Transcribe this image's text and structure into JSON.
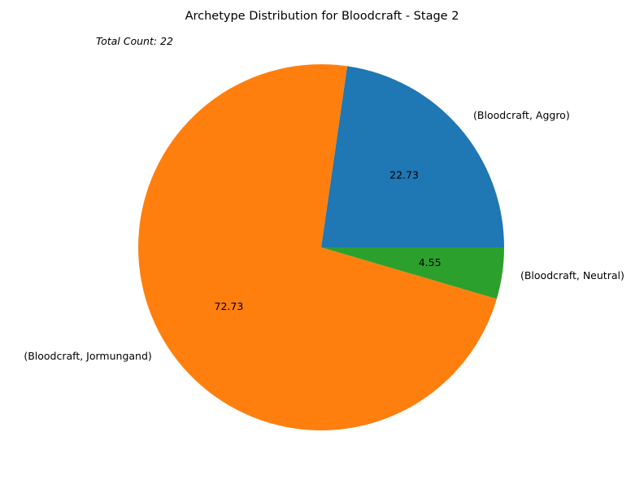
{
  "chart_data": {
    "type": "pie",
    "title": "Archetype Distribution for Bloodcraft - Stage 2",
    "annotation": "Total Count: 22",
    "slices": [
      {
        "label": "(Bloodcraft, Aggro)",
        "value": 5,
        "pct_label": "22.73",
        "color": "#1f77b4"
      },
      {
        "label": "(Bloodcraft, Jormungand)",
        "value": 16,
        "pct_label": "72.73",
        "color": "#ff7f0e"
      },
      {
        "label": "(Bloodcraft, Neutral)",
        "value": 1,
        "pct_label": "4.55",
        "color": "#2ca02c"
      }
    ],
    "start_angle_deg": 0,
    "direction": "counterclockwise"
  }
}
